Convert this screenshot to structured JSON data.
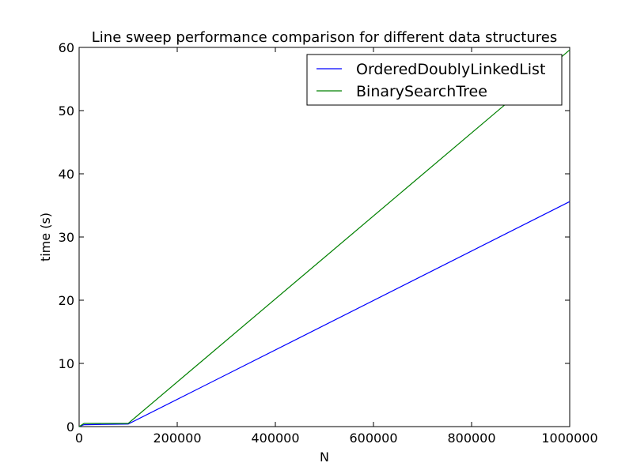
{
  "chart_data": {
    "type": "line",
    "title": "Line sweep performance comparison for different data structures",
    "xlabel": "N",
    "ylabel": "time (s)",
    "xlim": [
      0,
      1000000
    ],
    "ylim": [
      0,
      60
    ],
    "x_ticks": [
      0,
      200000,
      400000,
      600000,
      800000,
      1000000
    ],
    "x_tick_labels": [
      "0",
      "200000",
      "400000",
      "600000",
      "800000",
      "1000000"
    ],
    "y_ticks": [
      0,
      10,
      20,
      30,
      40,
      50,
      60
    ],
    "y_tick_labels": [
      "0",
      "10",
      "20",
      "30",
      "40",
      "50",
      "60"
    ],
    "grid": false,
    "legend_position": "top-right",
    "x": [
      0,
      10000,
      100000,
      1000000
    ],
    "series": [
      {
        "name": "OrderedDoublyLinkedList",
        "color": "#0000ff",
        "values": [
          0.0,
          0.3,
          0.4,
          35.6
        ]
      },
      {
        "name": "BinarySearchTree",
        "color": "#008000",
        "values": [
          0.0,
          0.5,
          0.5,
          59.6
        ]
      }
    ]
  }
}
